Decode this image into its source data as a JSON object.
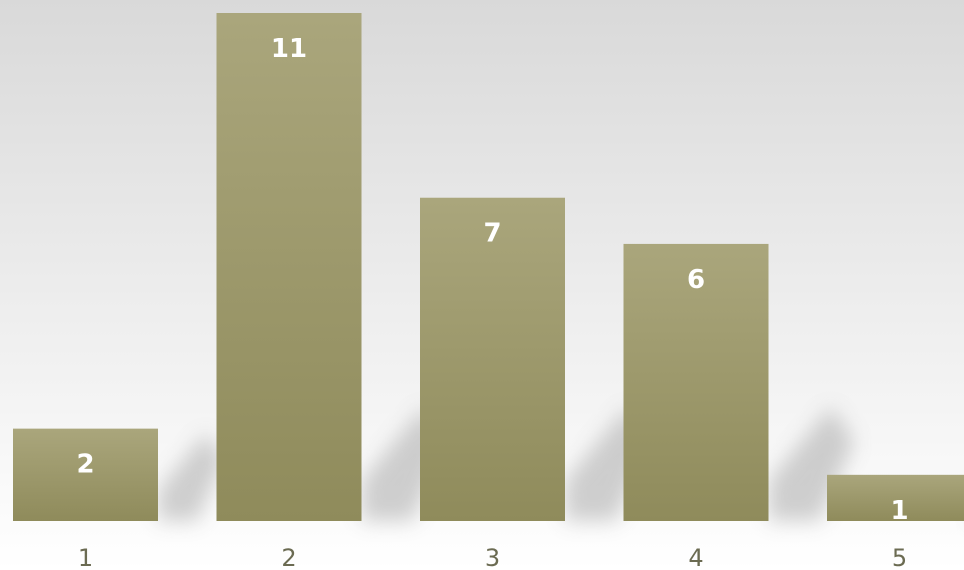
{
  "chart_data": {
    "type": "bar",
    "categories": [
      "1",
      "2",
      "3",
      "4",
      "5"
    ],
    "values": [
      2,
      11,
      7,
      6,
      1
    ],
    "ylim": [
      0,
      11
    ],
    "title": "",
    "xlabel": "",
    "ylabel": "",
    "grid": false,
    "legend": "none",
    "data_labels": [
      "2",
      "11",
      "7",
      "6",
      "1"
    ]
  },
  "colors": {
    "bar_top": "#aaa67c",
    "bar_bottom": "#8f8b5b",
    "label": "#ffffff",
    "tick": "#6b6b52",
    "shadow": "#999999"
  }
}
